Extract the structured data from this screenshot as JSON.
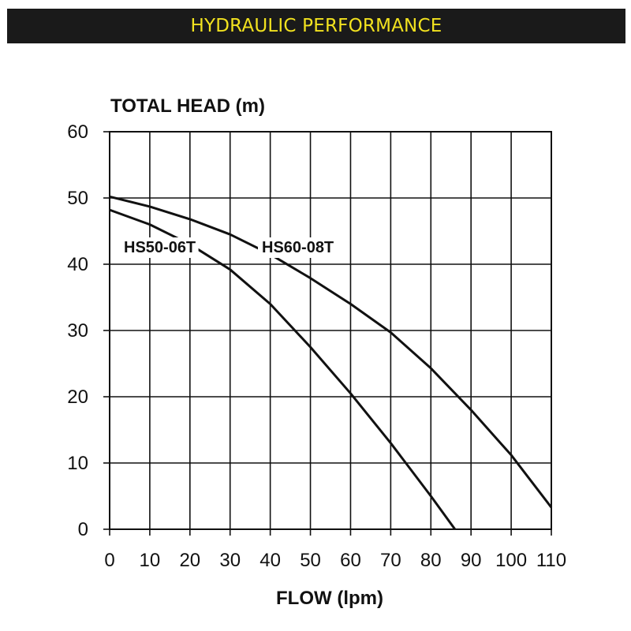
{
  "banner": {
    "title": "HYDRAULIC PERFORMANCE"
  },
  "colors": {
    "banner_bg": "#1a1a1a",
    "banner_text": "#f2e21f",
    "ink": "#111111"
  },
  "chart_data": {
    "type": "line",
    "title": "",
    "ylabel": "TOTAL HEAD (m)",
    "xlabel": "FLOW (lpm)",
    "xlim": [
      0,
      110
    ],
    "ylim": [
      0,
      60
    ],
    "grid": true,
    "xticks": [
      0,
      10,
      20,
      30,
      40,
      50,
      60,
      70,
      80,
      90,
      100,
      110
    ],
    "yticks": [
      0,
      10,
      20,
      30,
      40,
      50,
      60
    ],
    "series": [
      {
        "name": "HS50-06T",
        "points": [
          [
            0,
            48.2
          ],
          [
            10,
            46.0
          ],
          [
            20,
            43.0
          ],
          [
            30,
            39.2
          ],
          [
            40,
            34.0
          ],
          [
            50,
            27.5
          ],
          [
            60,
            20.5
          ],
          [
            70,
            13.0
          ],
          [
            80,
            5.0
          ],
          [
            86,
            0
          ]
        ]
      },
      {
        "name": "HS60-08T",
        "points": [
          [
            0,
            50.2
          ],
          [
            10,
            48.7
          ],
          [
            20,
            46.8
          ],
          [
            30,
            44.5
          ],
          [
            40,
            41.5
          ],
          [
            50,
            37.9
          ],
          [
            60,
            34.0
          ],
          [
            70,
            29.7
          ],
          [
            80,
            24.3
          ],
          [
            90,
            18.0
          ],
          [
            100,
            11.2
          ],
          [
            110,
            3.3
          ]
        ]
      }
    ]
  }
}
